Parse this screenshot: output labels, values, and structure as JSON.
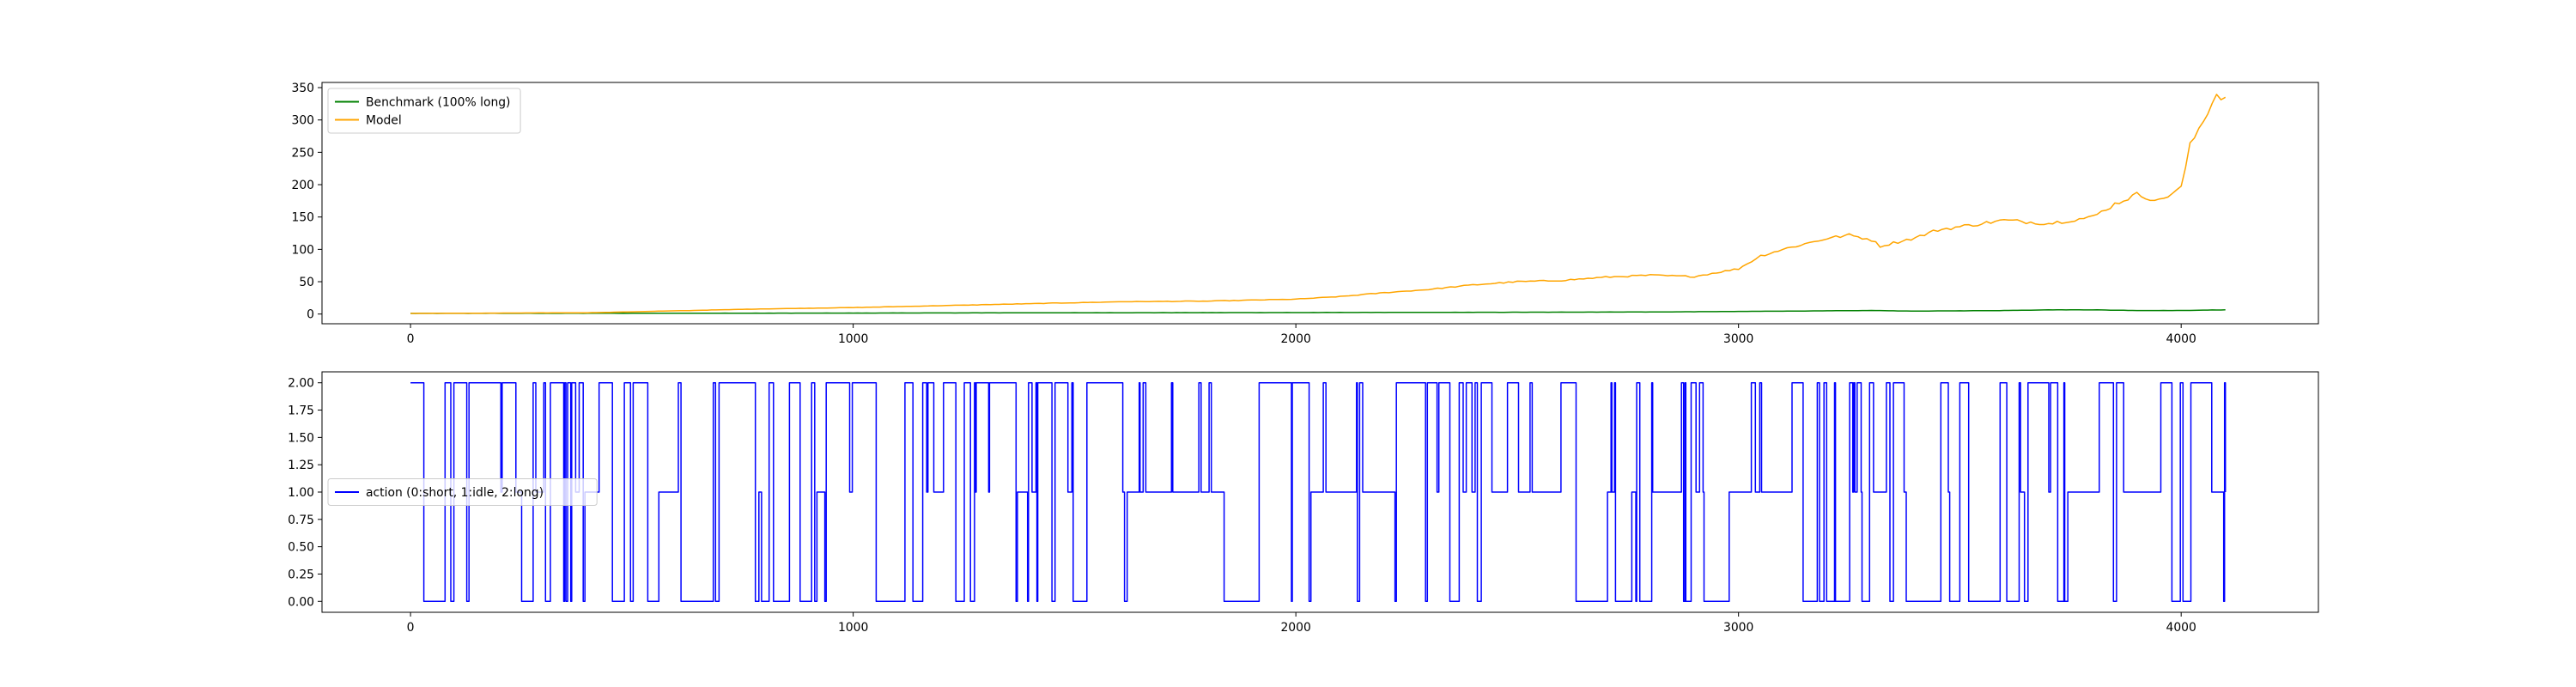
{
  "chart_data": [
    {
      "type": "line",
      "title": "",
      "xlabel": "",
      "ylabel": "",
      "xlim": [
        -200,
        4310
      ],
      "ylim": [
        -15,
        358
      ],
      "xticks": [
        0,
        1000,
        2000,
        3000,
        4000
      ],
      "yticks": [
        0,
        50,
        100,
        150,
        200,
        250,
        300,
        350
      ],
      "legend": {
        "placement": "upper left"
      },
      "grid": false,
      "series": [
        {
          "name": "Benchmark (100% long)",
          "color": "#008000",
          "x": [
            0,
            500,
            1000,
            1500,
            2000,
            2500,
            2800,
            3000,
            3200,
            3300,
            3400,
            3600,
            3700,
            3800,
            3900,
            4000,
            4100
          ],
          "y": [
            1,
            1.2,
            1.5,
            2,
            2.3,
            2.8,
            3.2,
            4,
            5,
            5.5,
            4.5,
            5.5,
            6.5,
            6.5,
            5.5,
            5.5,
            6.5
          ]
        },
        {
          "name": "Model",
          "color": "#FFA500",
          "x": [
            0,
            200,
            400,
            600,
            800,
            1000,
            1200,
            1400,
            1600,
            1800,
            2000,
            2100,
            2200,
            2300,
            2400,
            2500,
            2600,
            2700,
            2800,
            2900,
            3000,
            3050,
            3100,
            3200,
            3250,
            3300,
            3320,
            3350,
            3400,
            3450,
            3500,
            3600,
            3700,
            3800,
            3850,
            3900,
            3950,
            4000,
            4020,
            4050,
            4080,
            4100
          ],
          "y": [
            1,
            1.5,
            2,
            5,
            8,
            10,
            13,
            16,
            19,
            20,
            23,
            27,
            33,
            38,
            45,
            50,
            52,
            57,
            60,
            58,
            70,
            90,
            100,
            117,
            122,
            115,
            105,
            110,
            118,
            130,
            135,
            145,
            140,
            150,
            170,
            185,
            175,
            195,
            260,
            300,
            340,
            335
          ]
        }
      ]
    },
    {
      "type": "line",
      "title": "",
      "xlabel": "",
      "ylabel": "",
      "xlim": [
        -200,
        4310
      ],
      "ylim": [
        -0.1,
        2.1
      ],
      "xticks": [
        0,
        1000,
        2000,
        3000,
        4000
      ],
      "yticks": [
        0.0,
        0.25,
        0.5,
        0.75,
        1.0,
        1.25,
        1.5,
        1.75,
        2.0
      ],
      "ytick_labels": [
        "0.00",
        "0.25",
        "0.50",
        "0.75",
        "1.00",
        "1.25",
        "1.50",
        "1.75",
        "2.00"
      ],
      "legend": {
        "placement": "center left"
      },
      "grid": false,
      "series": [
        {
          "name": "action (0:short, 1:idle, 2:long)",
          "color": "#0000FF",
          "values_domain": [
            0,
            1,
            2
          ],
          "n_points": 4100,
          "note": "step-like signal switching between 0, 1 and 2; dense rapid switching"
        }
      ]
    }
  ]
}
